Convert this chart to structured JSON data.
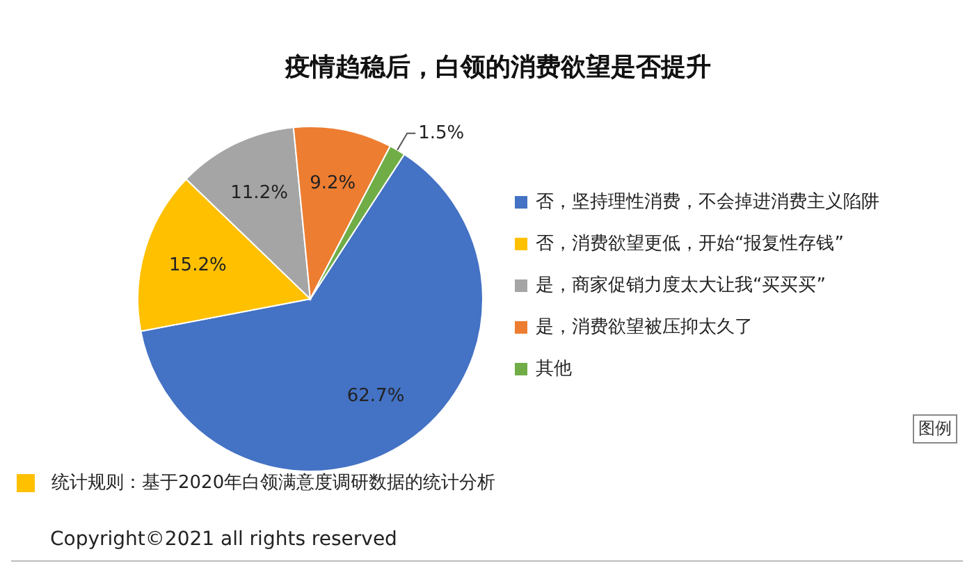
{
  "chart_data": {
    "type": "pie",
    "title": "疫情趋稳后，白领的消费欲望是否提升",
    "categories": [
      "否，坚持理性消费，不会掉进消费主义陷阱",
      "否，消费欲望更低，开始“报复性存钱”",
      "是，商家促销力度太大让我“买买买”",
      "是，消费欲望被压抑太久了",
      "其他"
    ],
    "values": [
      62.7,
      15.2,
      11.2,
      9.2,
      1.5
    ],
    "value_labels": [
      "62.7%",
      "15.2%",
      "11.2%",
      "9.2%",
      "1.5%"
    ],
    "colors": [
      "#4472c4",
      "#ffc000",
      "#a5a5a5",
      "#ed7d31",
      "#70ad47"
    ],
    "legend": "right",
    "annotations": [
      "图例",
      "统计规则：基于2020年白领满意度调研数据的统计分析",
      "Copyright©2021 all rights reserved"
    ]
  }
}
